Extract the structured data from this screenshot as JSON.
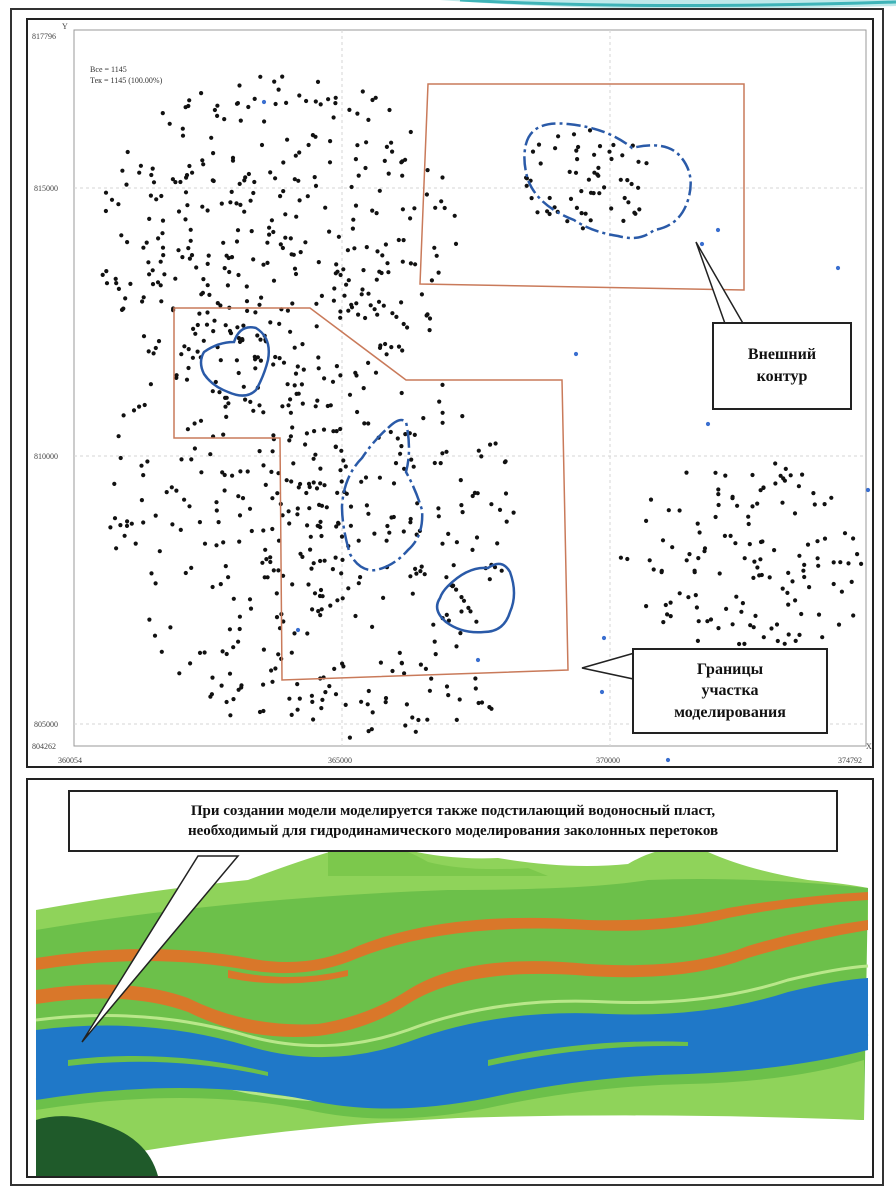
{
  "map": {
    "stats": {
      "line1": "Все = 1145",
      "line2": "Тек = 1145 (100.00%)"
    },
    "y_axis": {
      "label": "Y",
      "ticks": [
        "817796",
        "815000",
        "810000",
        "805000",
        "804262"
      ]
    },
    "x_axis": {
      "label": "X",
      "ticks": [
        "360054",
        "365000",
        "370000",
        "374792"
      ]
    },
    "callouts": {
      "outer_contour": [
        "Внешний",
        "контур"
      ],
      "modeling_bounds": [
        "Границы",
        "участка",
        "моделирования"
      ]
    },
    "colors": {
      "points": "#111111",
      "contour": "#2a5aa8",
      "bounds": "#c97a5a",
      "grid": "#d6d6d6"
    }
  },
  "section": {
    "note_line1": "При создании модели моделируется также подстилающий водоносный пласт,",
    "note_line2": "необходимый для гидродинамического моделирования заколонных перетоков",
    "colors": {
      "green": "#6cc04a",
      "light_green": "#8fd35a",
      "orange": "#d9772a",
      "blue": "#1f78c8",
      "dark_green": "#1f5a2a"
    }
  }
}
